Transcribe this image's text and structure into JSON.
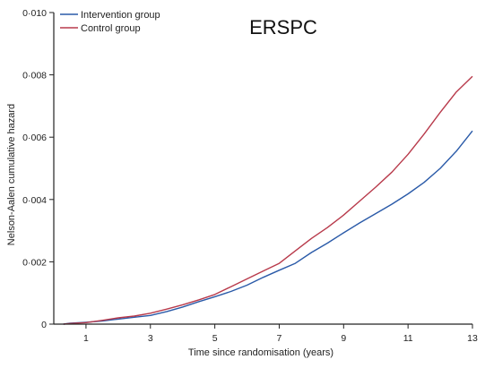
{
  "chart_data": {
    "type": "line",
    "title": "ERSPC",
    "xlabel": "Time since randomisation (years)",
    "ylabel": "Nelson-Aalen cumulative hazard",
    "xlim": [
      0,
      13
    ],
    "ylim": [
      0,
      0.01
    ],
    "x_ticks": [
      "1",
      "3",
      "5",
      "7",
      "9",
      "11",
      "13"
    ],
    "x_tick_values": [
      1,
      3,
      5,
      7,
      9,
      11,
      13
    ],
    "y_ticks": [
      "0",
      "0·002",
      "0·004",
      "0·006",
      "0·008",
      "0·010"
    ],
    "y_tick_values": [
      0,
      0.002,
      0.004,
      0.006,
      0.008,
      0.01
    ],
    "grid": false,
    "legend_position": "top-left",
    "series": [
      {
        "name": "Intervention group",
        "color": "#2a5aa8",
        "x": [
          0.3,
          0.5,
          1.0,
          1.5,
          2.0,
          2.5,
          3.0,
          3.5,
          4.0,
          4.5,
          5.0,
          5.5,
          6.0,
          6.5,
          7.0,
          7.5,
          8.0,
          8.5,
          9.0,
          9.5,
          10.0,
          10.5,
          11.0,
          11.5,
          12.0,
          12.5,
          13.0
        ],
        "y": [
          0,
          3e-05,
          6e-05,
          0.0001,
          0.00016,
          0.00022,
          0.00028,
          0.0004,
          0.00055,
          0.00072,
          0.00088,
          0.00105,
          0.00125,
          0.0015,
          0.00173,
          0.00195,
          0.0023,
          0.0026,
          0.00293,
          0.00325,
          0.00355,
          0.00385,
          0.00418,
          0.00455,
          0.005,
          0.00555,
          0.0062
        ]
      },
      {
        "name": "Control group",
        "color": "#b83a4b",
        "x": [
          0.3,
          0.5,
          1.0,
          1.5,
          2.0,
          2.5,
          3.0,
          3.5,
          4.0,
          4.5,
          5.0,
          5.5,
          6.0,
          6.5,
          7.0,
          7.5,
          8.0,
          8.5,
          9.0,
          9.5,
          10.0,
          10.5,
          11.0,
          11.5,
          12.0,
          12.5,
          13.0
        ],
        "y": [
          0,
          2e-05,
          5e-05,
          0.00012,
          0.0002,
          0.00026,
          0.00035,
          0.00048,
          0.00062,
          0.00078,
          0.00095,
          0.0012,
          0.00145,
          0.0017,
          0.00195,
          0.00235,
          0.00275,
          0.0031,
          0.0035,
          0.00395,
          0.0044,
          0.00488,
          0.00545,
          0.0061,
          0.0068,
          0.00745,
          0.00795
        ]
      }
    ]
  }
}
